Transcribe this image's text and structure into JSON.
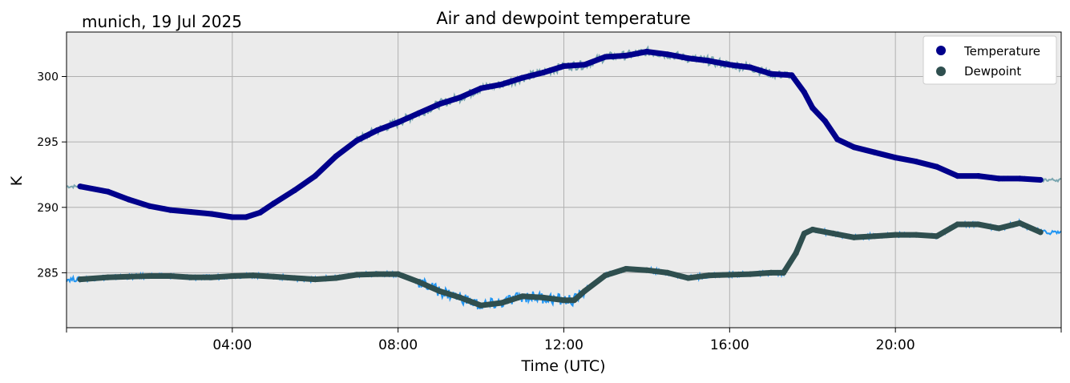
{
  "chart_data": {
    "type": "line",
    "title": "Air and dewpoint temperature",
    "location_label": "munich, 19 Jul 2025",
    "xlabel": "Time (UTC)",
    "ylabel": "K",
    "x_unit": "hours (UTC), 19 Jul 2025",
    "xlim": [
      0,
      24
    ],
    "ylim": [
      280.8,
      303.4
    ],
    "x_ticks": [
      {
        "value": 4,
        "label": "04:00"
      },
      {
        "value": 8,
        "label": "08:00"
      },
      {
        "value": 12,
        "label": "12:00"
      },
      {
        "value": 16,
        "label": "16:00"
      },
      {
        "value": 20,
        "label": "20:00"
      }
    ],
    "y_ticks": [
      {
        "value": 285,
        "label": "285"
      },
      {
        "value": 290,
        "label": "290"
      },
      {
        "value": 295,
        "label": "295"
      },
      {
        "value": 300,
        "label": "300"
      }
    ],
    "grid": true,
    "legend_position": "top-right",
    "series": [
      {
        "name": "Temperature",
        "color": "#00008b",
        "raw_color": "#7aa6b0",
        "x": [
          0.33,
          1.0,
          1.5,
          2.0,
          2.5,
          3.0,
          3.5,
          4.0,
          4.33,
          4.67,
          5.0,
          5.5,
          6.0,
          6.5,
          7.0,
          7.5,
          8.0,
          8.5,
          9.0,
          9.5,
          10.0,
          10.5,
          11.0,
          11.5,
          12.0,
          12.5,
          13.0,
          13.5,
          14.0,
          14.5,
          15.0,
          15.5,
          16.0,
          16.5,
          17.0,
          17.5,
          17.8,
          18.0,
          18.3,
          18.6,
          19.0,
          19.5,
          20.0,
          20.5,
          21.0,
          21.5,
          22.0,
          22.5,
          23.0,
          23.5
        ],
        "y": [
          291.6,
          291.2,
          290.6,
          290.1,
          289.8,
          289.65,
          289.5,
          289.25,
          289.25,
          289.6,
          290.3,
          291.3,
          292.4,
          293.9,
          295.1,
          295.9,
          296.5,
          297.2,
          297.9,
          298.4,
          299.1,
          299.4,
          299.9,
          300.3,
          300.8,
          300.9,
          301.5,
          301.6,
          301.9,
          301.7,
          301.4,
          301.2,
          300.9,
          300.7,
          300.2,
          300.1,
          298.8,
          297.6,
          296.6,
          295.2,
          294.6,
          294.2,
          293.8,
          293.5,
          293.1,
          292.4,
          292.4,
          292.2,
          292.2,
          292.1
        ]
      },
      {
        "name": "Dewpoint",
        "color": "#2f4f4f",
        "raw_color": "#2196f3",
        "x": [
          0.33,
          1.0,
          1.5,
          2.0,
          2.5,
          3.0,
          3.5,
          4.0,
          4.5,
          5.0,
          5.5,
          6.0,
          6.5,
          7.0,
          7.5,
          8.0,
          8.5,
          9.0,
          9.5,
          10.0,
          10.5,
          11.0,
          11.5,
          12.0,
          12.25,
          12.5,
          13.0,
          13.5,
          14.0,
          14.5,
          15.0,
          15.5,
          16.0,
          16.5,
          17.0,
          17.3,
          17.6,
          17.8,
          18.0,
          18.5,
          19.0,
          19.5,
          20.0,
          20.5,
          21.0,
          21.5,
          22.0,
          22.5,
          23.0,
          23.5
        ],
        "y": [
          284.5,
          284.65,
          284.7,
          284.75,
          284.75,
          284.65,
          284.65,
          284.75,
          284.8,
          284.7,
          284.6,
          284.5,
          284.6,
          284.85,
          284.9,
          284.9,
          284.3,
          283.6,
          283.1,
          282.5,
          282.7,
          283.2,
          283.1,
          282.9,
          282.9,
          283.6,
          284.8,
          285.3,
          285.2,
          285.0,
          284.6,
          284.8,
          284.85,
          284.9,
          285.0,
          285.0,
          286.5,
          288.0,
          288.3,
          288.0,
          287.7,
          287.8,
          287.9,
          287.9,
          287.8,
          288.7,
          288.7,
          288.4,
          288.8,
          288.1
        ]
      }
    ]
  }
}
